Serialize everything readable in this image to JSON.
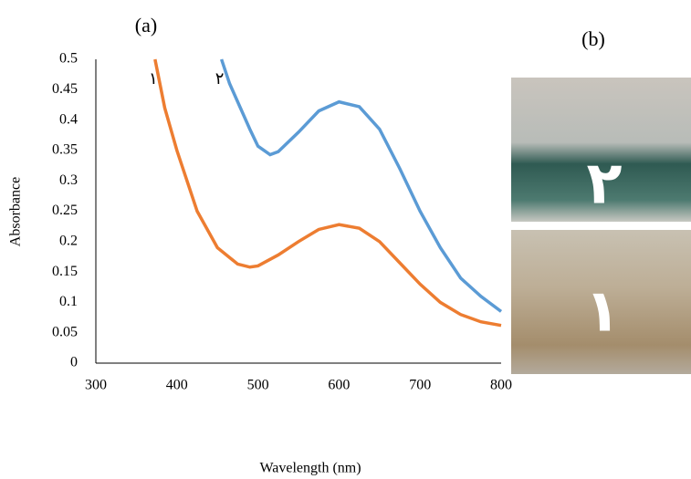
{
  "chart_data": {
    "type": "line",
    "title": "(a)",
    "panel_b_title": "(b)",
    "xlabel": "Wavelength (nm)",
    "ylabel": "Absorbance",
    "xlim": [
      300,
      800
    ],
    "xticks": [
      300,
      400,
      500,
      600,
      700,
      800
    ],
    "ylim": [
      0,
      0.5
    ],
    "yticks": [
      0,
      0.05,
      0.1,
      0.15,
      0.2,
      0.25,
      0.3,
      0.35,
      0.4,
      0.45,
      0.5
    ],
    "grid": false,
    "series": [
      {
        "name": "۱",
        "color": "#ed7d31",
        "x": [
          373,
          385,
          400,
          425,
          450,
          475,
          490,
          500,
          525,
          550,
          575,
          600,
          625,
          650,
          675,
          700,
          725,
          750,
          775,
          800
        ],
        "values": [
          0.5,
          0.42,
          0.35,
          0.25,
          0.19,
          0.163,
          0.158,
          0.16,
          0.178,
          0.2,
          0.22,
          0.228,
          0.222,
          0.2,
          0.165,
          0.13,
          0.1,
          0.08,
          0.068,
          0.062
        ]
      },
      {
        "name": "۲",
        "color": "#5b9bd5",
        "x": [
          455,
          465,
          475,
          490,
          500,
          515,
          525,
          550,
          575,
          600,
          625,
          650,
          675,
          700,
          725,
          750,
          775,
          800
        ],
        "values": [
          0.5,
          0.46,
          0.43,
          0.385,
          0.357,
          0.343,
          0.348,
          0.38,
          0.415,
          0.43,
          0.422,
          0.385,
          0.32,
          0.25,
          0.19,
          0.14,
          0.11,
          0.085
        ]
      }
    ],
    "photos": [
      {
        "label": "۲"
      },
      {
        "label": "۱"
      }
    ]
  }
}
